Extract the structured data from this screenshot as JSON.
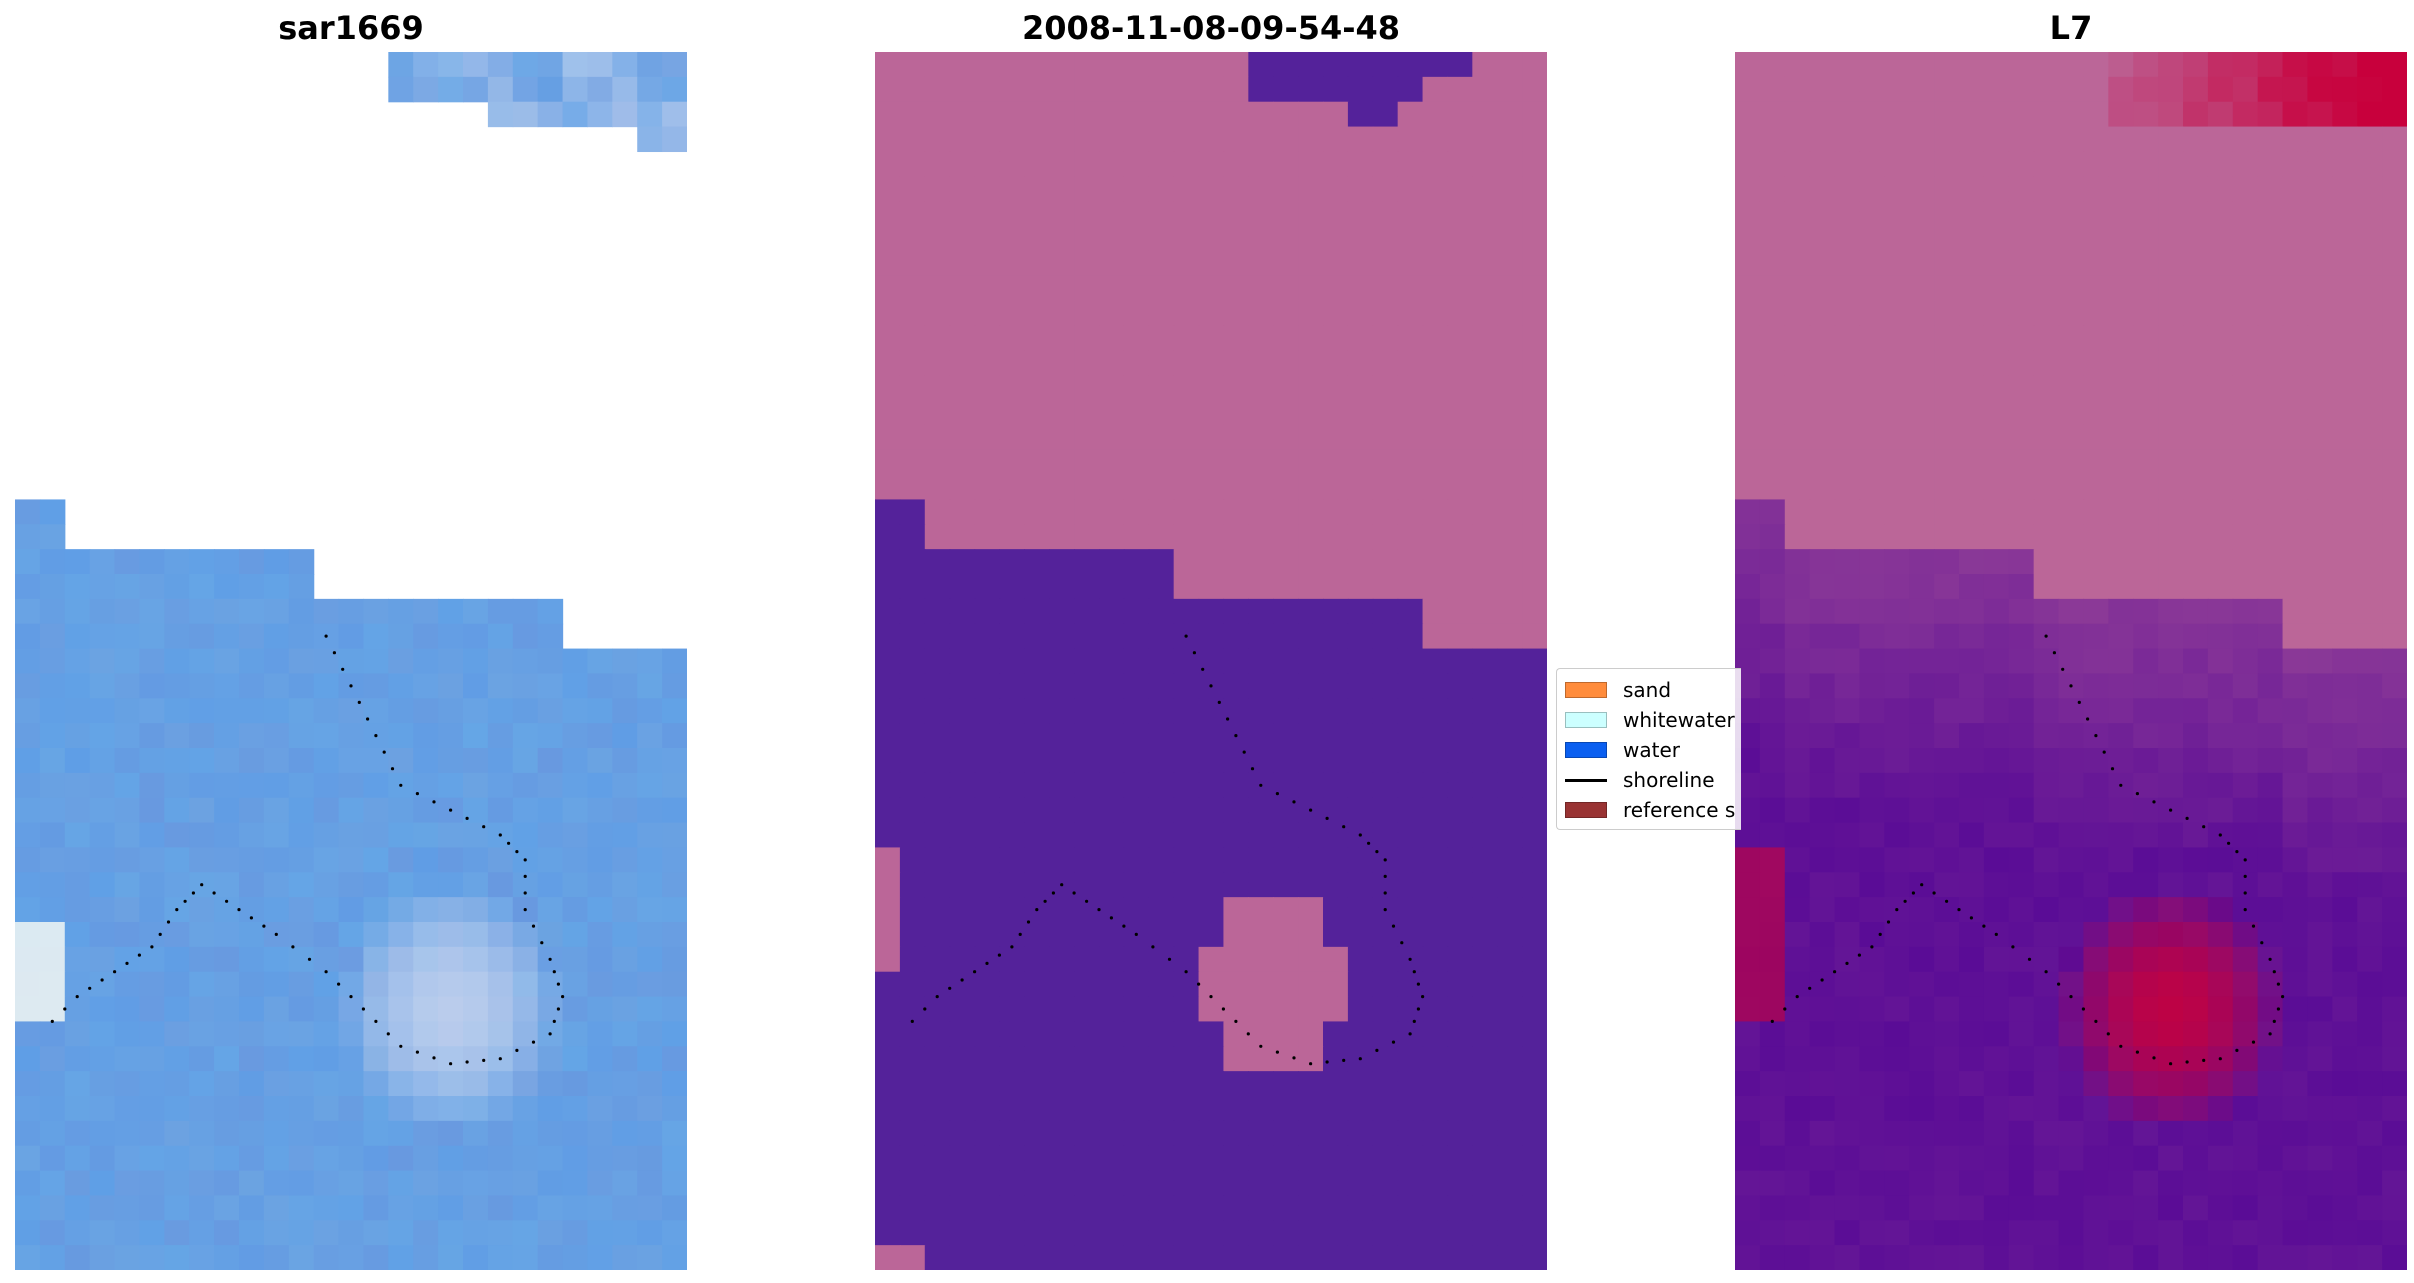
{
  "panels": [
    {
      "title": "sar1669",
      "kind": "rgb"
    },
    {
      "title": "2008-11-08-09-54-48",
      "kind": "classified"
    },
    {
      "title": "L7",
      "kind": "index"
    }
  ],
  "legend": {
    "items": [
      {
        "label": "sand",
        "type": "patch",
        "color": "#ff8c3c"
      },
      {
        "label": "whitewater",
        "type": "patch",
        "color": "#ccffff"
      },
      {
        "label": "water",
        "type": "patch",
        "color": "#0a5ff0"
      },
      {
        "label": "shoreline",
        "type": "line",
        "color": "#000000"
      },
      {
        "label": "reference s",
        "type": "patch",
        "color": "#993333"
      }
    ]
  },
  "colors": {
    "rgb_water": "#5f9ee6",
    "classified_land": "#bb6698",
    "classified_water": "#54229a",
    "index_high": "#c8003c",
    "index_low": "#5a0c96",
    "shoreline": "#000000"
  }
}
